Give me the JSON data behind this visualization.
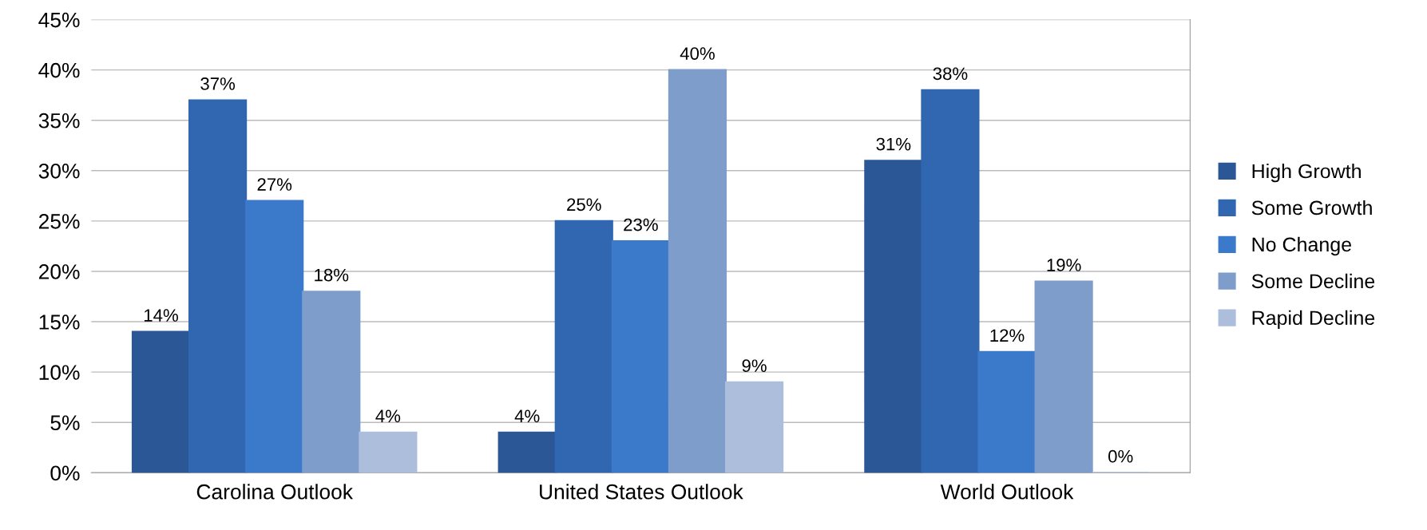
{
  "chart_data": {
    "type": "bar",
    "categories": [
      "Carolina Outlook",
      "United States Outlook",
      "World Outlook"
    ],
    "series": [
      {
        "name": "High Growth",
        "color": "#2b5797",
        "values": [
          14,
          4,
          31
        ],
        "value_labels": [
          "14%",
          "4%",
          "31%"
        ]
      },
      {
        "name": "Some Growth",
        "color": "#3067b0",
        "values": [
          37,
          25,
          38
        ],
        "value_labels": [
          "37%",
          "25%",
          "38%"
        ]
      },
      {
        "name": "No Change",
        "color": "#3b7acb",
        "values": [
          27,
          23,
          12
        ],
        "value_labels": [
          "27%",
          "23%",
          "12%"
        ]
      },
      {
        "name": "Some Decline",
        "color": "#7e9dcb",
        "values": [
          18,
          40,
          19
        ],
        "value_labels": [
          "18%",
          "40%",
          "19%"
        ]
      },
      {
        "name": "Rapid Decline",
        "color": "#adbedd",
        "values": [
          4,
          9,
          0
        ],
        "value_labels": [
          "4%",
          "9%",
          "0%"
        ]
      }
    ],
    "ylim": [
      0,
      45
    ],
    "yticks": [
      {
        "value": 0,
        "label": "0%"
      },
      {
        "value": 5,
        "label": "5%"
      },
      {
        "value": 10,
        "label": "10%"
      },
      {
        "value": 15,
        "label": "15%"
      },
      {
        "value": 20,
        "label": "20%"
      },
      {
        "value": 25,
        "label": "25%"
      },
      {
        "value": 30,
        "label": "30%"
      },
      {
        "value": 35,
        "label": "35%"
      },
      {
        "value": 40,
        "label": "40%"
      },
      {
        "value": 45,
        "label": "45%"
      }
    ],
    "grid": "y",
    "legend": "right"
  }
}
